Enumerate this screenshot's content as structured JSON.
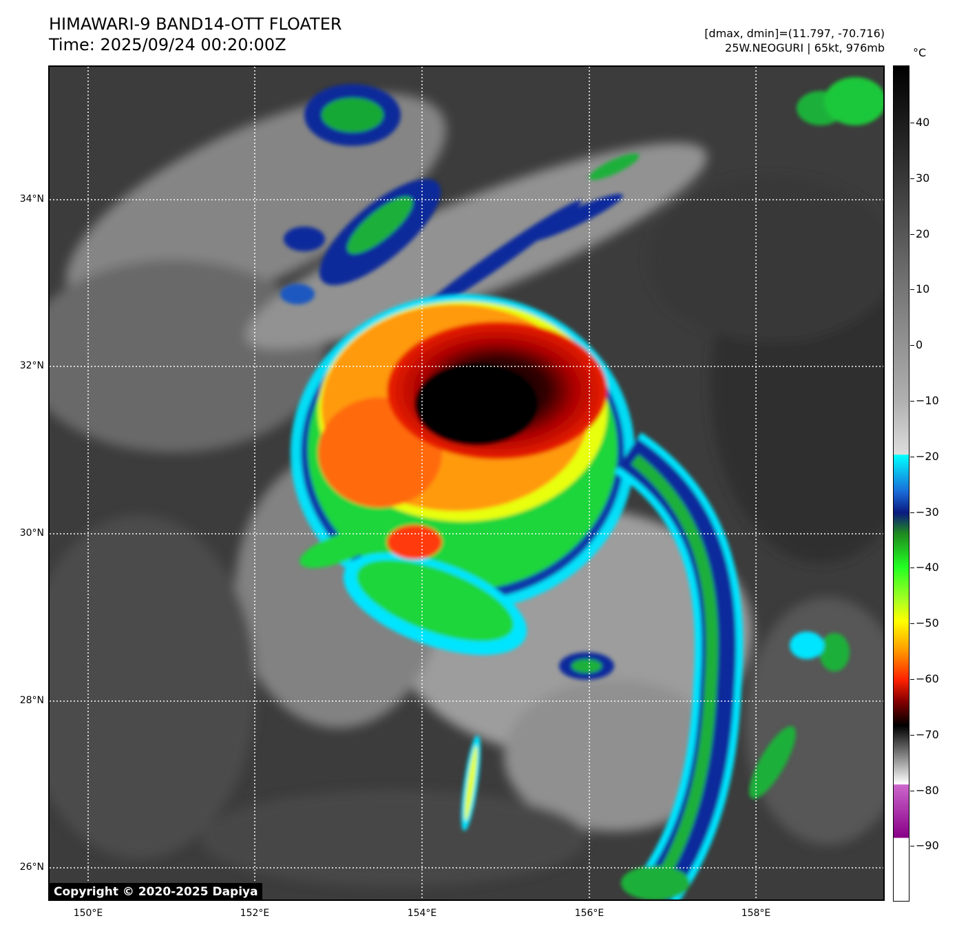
{
  "header": {
    "title_line1": "HIMAWARI-9 BAND14-OTT FLOATER",
    "title_line2": "Time: 2025/09/24 00:20:00Z",
    "info_line1": "[dmax, dmin]=(11.797, -70.716)",
    "info_line2": "25W.NEOGURI | 65kt, 976mb"
  },
  "map": {
    "lat_labels": [
      "34°N",
      "32°N",
      "30°N",
      "28°N",
      "26°N"
    ],
    "lon_labels": [
      "150°E",
      "152°E",
      "154°E",
      "156°E",
      "158°E"
    ],
    "copyright": "Copyright © 2020-2025 Dapiya"
  },
  "colorbar": {
    "unit": "°C",
    "labels": [
      "40",
      "30",
      "20",
      "10",
      "0",
      "−10",
      "−20",
      "−30",
      "−40",
      "−50",
      "−60",
      "−70",
      "−80",
      "−90"
    ]
  },
  "colors": {
    "cold_cloud_top": "#000000",
    "warm_ocean": "#3a3a3a",
    "cyan": "#00e5ff",
    "green": "#22dd22",
    "yellow": "#ffff00",
    "red": "#ee1100"
  }
}
